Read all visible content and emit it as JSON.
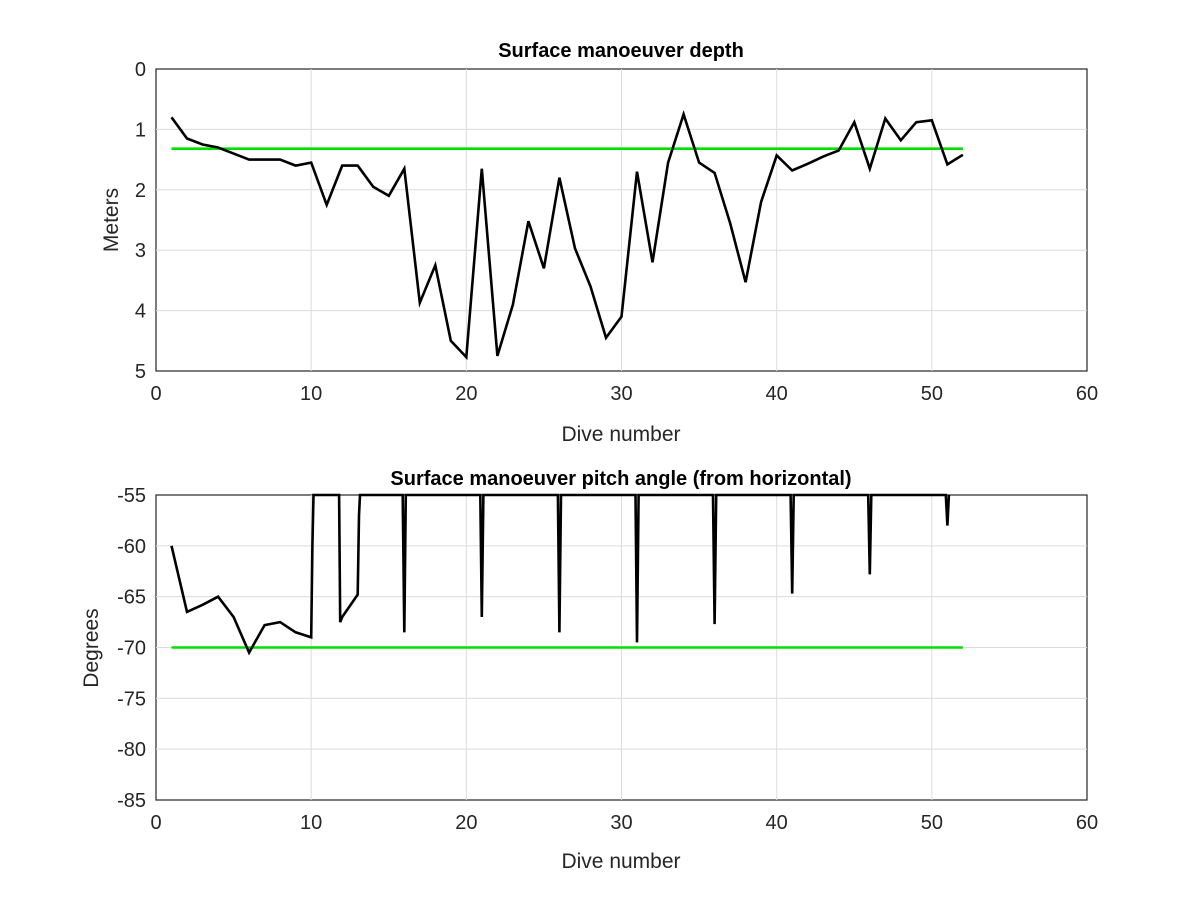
{
  "chart_data": [
    {
      "type": "line",
      "title": "Surface manoeuver depth",
      "xlabel": "Dive number",
      "ylabel": "Meters",
      "xlim": [
        0,
        60
      ],
      "ylim": [
        0,
        5
      ],
      "y_reversed": true,
      "xticks": [
        0,
        10,
        20,
        30,
        40,
        50,
        60
      ],
      "yticks": [
        0,
        1,
        2,
        3,
        4,
        5
      ],
      "grid": true,
      "reference_line": {
        "y": 1.32,
        "x_range": [
          1,
          52
        ],
        "color": "#00e000"
      },
      "series": [
        {
          "color": "#000000",
          "x": [
            1,
            2,
            3,
            4,
            5,
            6,
            7,
            8,
            9,
            10,
            11,
            12,
            13,
            14,
            15,
            16,
            17,
            18,
            19,
            20,
            21,
            22,
            23,
            24,
            25,
            26,
            27,
            28,
            29,
            30,
            31,
            32,
            33,
            34,
            35,
            36,
            37,
            38,
            39,
            40,
            41,
            42,
            43,
            44,
            45,
            46,
            47,
            48,
            49,
            50,
            51,
            52
          ],
          "y": [
            0.8,
            1.15,
            1.25,
            1.3,
            1.4,
            1.5,
            1.5,
            1.5,
            1.6,
            1.55,
            2.25,
            1.6,
            1.6,
            1.95,
            2.1,
            1.65,
            3.87,
            3.25,
            4.5,
            4.77,
            1.65,
            4.75,
            3.9,
            2.52,
            3.3,
            1.8,
            2.97,
            3.6,
            4.45,
            4.1,
            1.7,
            3.2,
            1.55,
            0.75,
            1.55,
            1.72,
            2.55,
            3.53,
            2.2,
            1.43,
            1.68,
            1.57,
            1.45,
            1.35,
            0.88,
            1.65,
            0.82,
            1.18,
            0.88,
            0.85,
            1.58,
            1.42
          ]
        }
      ]
    },
    {
      "type": "line",
      "title": "Surface manoeuver pitch angle (from horizontal)",
      "xlabel": "Dive number",
      "ylabel": "Degrees",
      "xlim": [
        0,
        60
      ],
      "ylim": [
        -85,
        -55
      ],
      "xticks": [
        0,
        10,
        20,
        30,
        40,
        50,
        60
      ],
      "yticks": [
        -55,
        -60,
        -65,
        -70,
        -75,
        -80,
        -85
      ],
      "grid": true,
      "reference_line": {
        "y": -70,
        "x_range": [
          1,
          52
        ],
        "color": "#00e000"
      },
      "series": [
        {
          "color": "#000000",
          "x": [
            1,
            2,
            3,
            4,
            5,
            6,
            7,
            8,
            9,
            10,
            10.08,
            10.15,
            11.8,
            11.87,
            12,
            13,
            13.08,
            13.15,
            15.9,
            16,
            16.1,
            20.9,
            21,
            21.1,
            25.9,
            26,
            26.1,
            30.9,
            31,
            31.1,
            35.9,
            36,
            36.1,
            40.9,
            41,
            41.1,
            45.9,
            46,
            46.1,
            50.9,
            51,
            51.1
          ],
          "y": [
            -60,
            -66.5,
            -65.8,
            -65,
            -67,
            -70.5,
            -67.8,
            -67.5,
            -68.5,
            -69,
            -60,
            -55,
            -55,
            -67.5,
            -67,
            -64.8,
            -57,
            -55,
            -55,
            -68.5,
            -55,
            -55,
            -67,
            -55,
            -55,
            -68.5,
            -55,
            -55,
            -69.5,
            -55,
            -55,
            -67.7,
            -55,
            -55,
            -64.7,
            -55,
            -55,
            -62.8,
            -55,
            -55,
            -58,
            -55
          ]
        }
      ]
    }
  ]
}
